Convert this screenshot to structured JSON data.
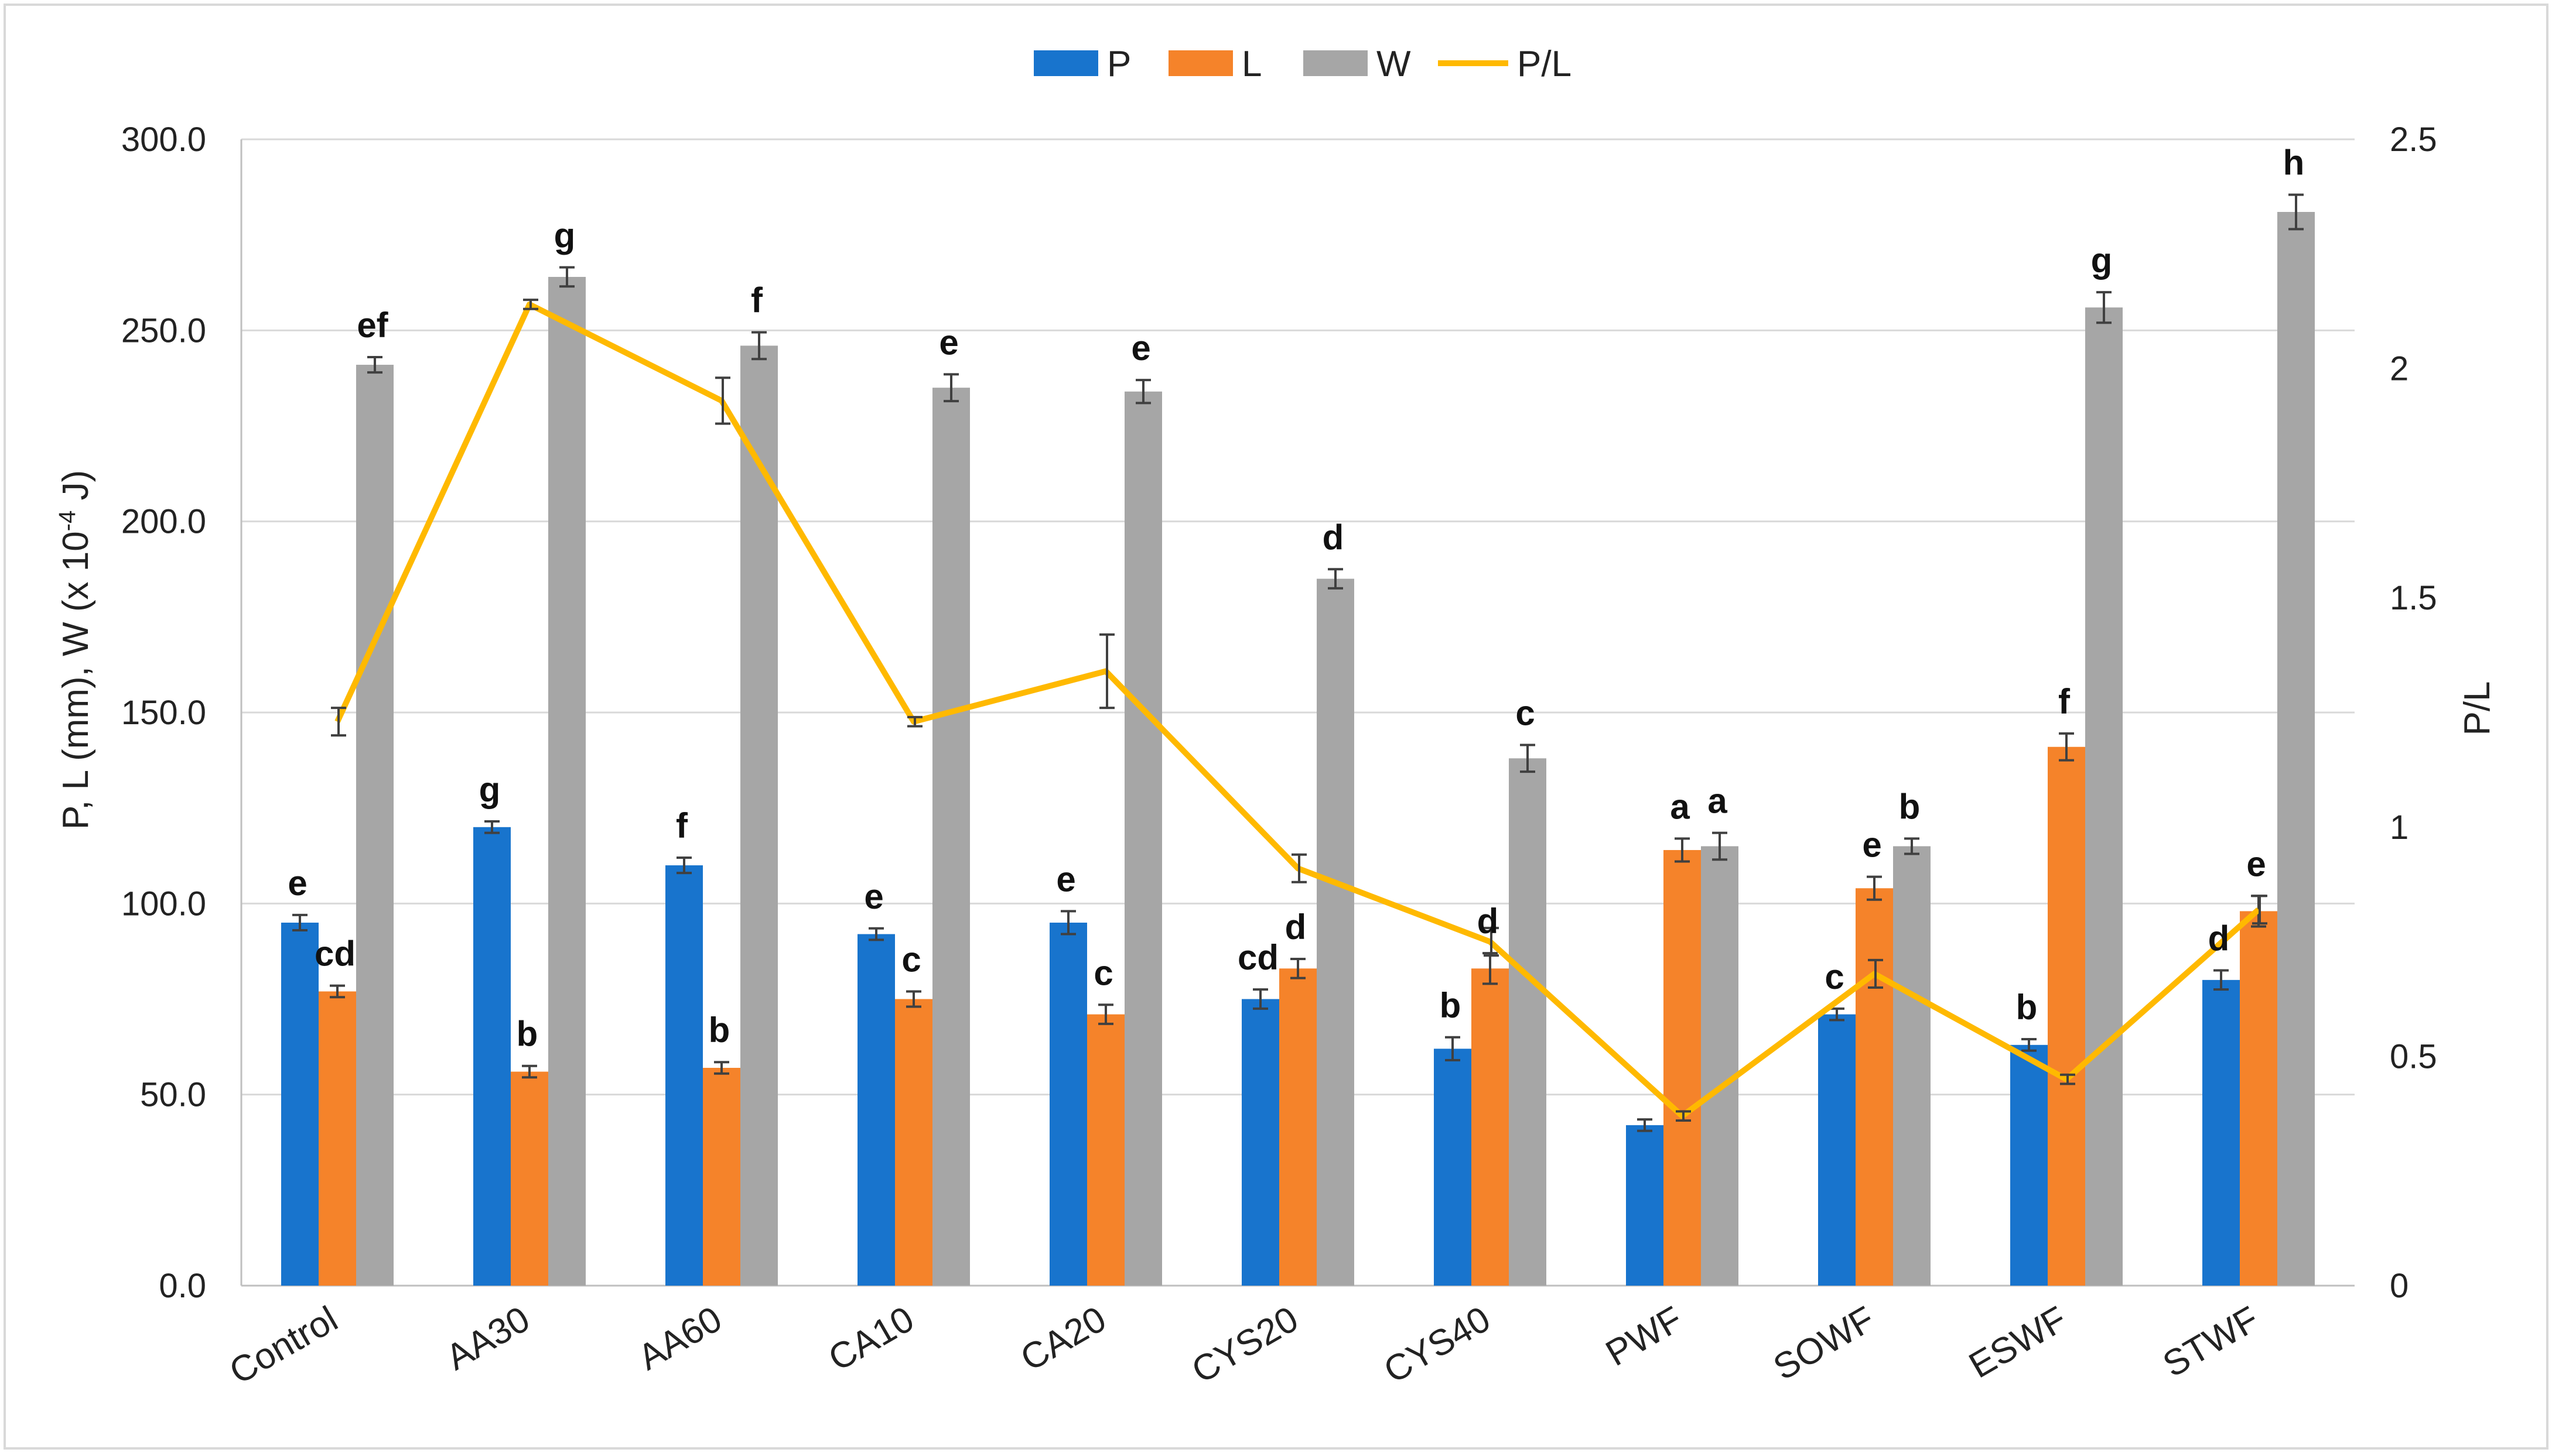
{
  "chart_data": {
    "type": "bar",
    "title": "",
    "categories": [
      "Control",
      "AA30",
      "AA60",
      "CA10",
      "CA20",
      "CYS20",
      "CYS40",
      "PWF",
      "SOWF",
      "ESWF",
      "STWF"
    ],
    "ylabel": "P, L (mm), W (x 10",
    "ylabel_sup": "-4",
    "ylabel_tail": " J)",
    "y2label": "P/L",
    "ylim": [
      0,
      300
    ],
    "y2lim": [
      0,
      2.5
    ],
    "yticks": [
      "0.0",
      "50.0",
      "100.0",
      "150.0",
      "200.0",
      "250.0",
      "300.0"
    ],
    "y2ticks": [
      "0",
      "0.5",
      "1",
      "1.5",
      "2",
      "2.5"
    ],
    "legend_position": "top-center",
    "gridlines": true,
    "series": [
      {
        "name": "P",
        "color": "#1874CD",
        "values": [
          95,
          120,
          110,
          92,
          95,
          75,
          62,
          42,
          71,
          63,
          80
        ],
        "errors": [
          2,
          1.5,
          2,
          1.5,
          3,
          2.5,
          3,
          1.5,
          1.5,
          1.5,
          2.5
        ],
        "letters": [
          "e",
          "g",
          "f",
          "e",
          "e",
          "cd",
          "b",
          "",
          "c",
          "b",
          "d"
        ]
      },
      {
        "name": "L",
        "color": "#F5832A",
        "values": [
          77,
          56,
          57,
          75,
          71,
          83,
          83,
          114,
          104,
          141,
          98
        ],
        "errors": [
          1.5,
          1.5,
          1.5,
          2,
          2.5,
          2.5,
          4,
          3,
          3,
          3.5,
          4
        ],
        "letters": [
          "cd",
          "b",
          "b",
          "c",
          "c",
          "d",
          "d",
          "a",
          "e",
          "f",
          "e"
        ]
      },
      {
        "name": "W",
        "color": "#A6A6A6",
        "values": [
          241,
          264,
          246,
          235,
          234,
          185,
          138,
          115,
          115,
          256,
          281
        ],
        "errors": [
          2,
          2.5,
          3.5,
          3.5,
          3,
          2.5,
          3.5,
          3.5,
          2,
          4,
          4.5
        ],
        "letters": [
          "ef",
          "g",
          "f",
          "e",
          "e",
          "d",
          "c",
          "a",
          "b",
          "g",
          "h"
        ]
      },
      {
        "name": "P/L",
        "color": "#FFB900",
        "type": "line",
        "axis": "secondary",
        "values": [
          1.23,
          2.14,
          1.93,
          1.23,
          1.34,
          0.91,
          0.75,
          0.37,
          0.68,
          0.45,
          0.82
        ],
        "errors": [
          0.03,
          0.01,
          0.05,
          0.01,
          0.08,
          0.03,
          0.03,
          0.01,
          0.03,
          0.01,
          0.03
        ]
      }
    ]
  }
}
